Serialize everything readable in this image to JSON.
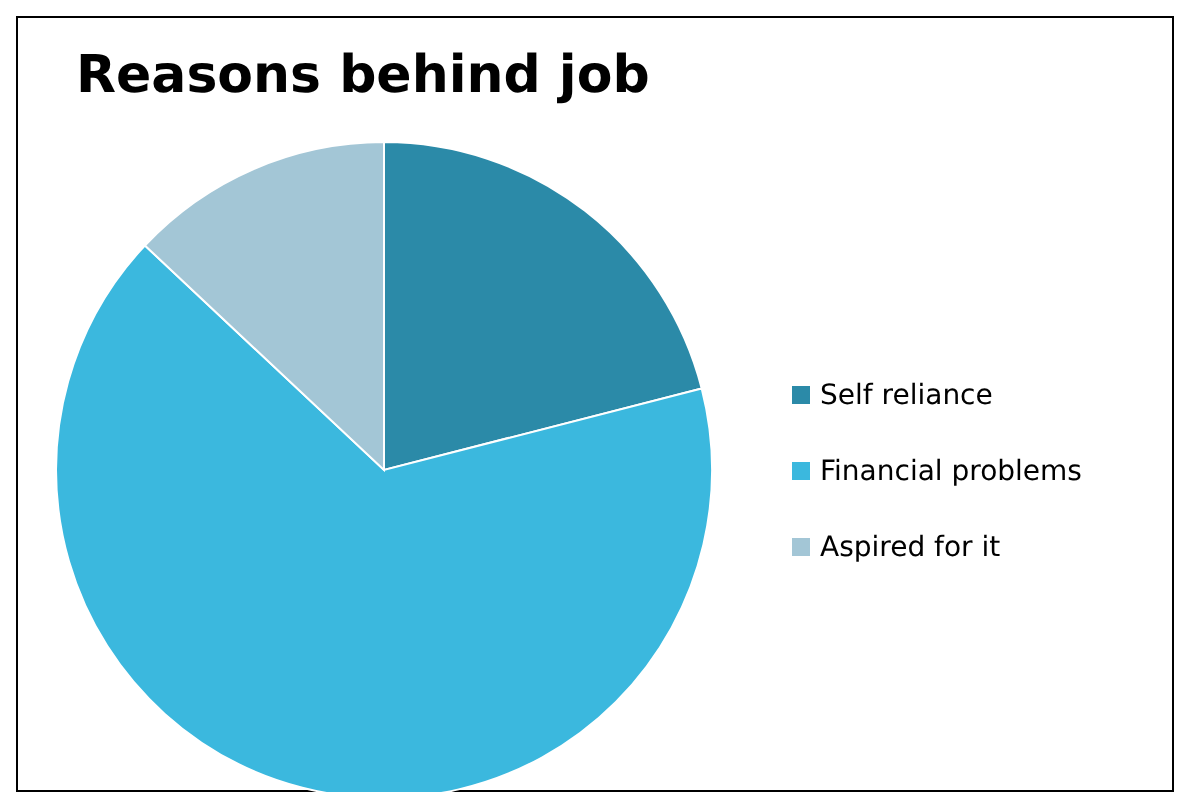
{
  "chart_data": {
    "type": "pie",
    "title": "Reasons behind job",
    "categories": [
      "Self reliance",
      "Financial problems",
      "Aspired for it"
    ],
    "values": [
      21,
      66,
      13
    ],
    "colors": [
      "#2b8aa8",
      "#3bb8de",
      "#a3c6d6"
    ],
    "legend": "right"
  }
}
